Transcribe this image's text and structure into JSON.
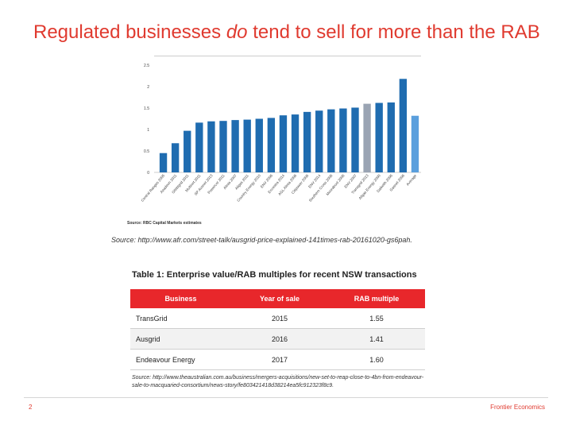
{
  "slide": {
    "title_pre": "Regulated businesses ",
    "title_em": "do",
    "title_post": " tend to sell for more than the RAB",
    "chart_source_note": "Source: RBC Capital Markets estimates",
    "source_line": "Source: http://www.afr.com/street-talk/ausgrid-price-explained-141times-rab-20161020-gs6pah.",
    "page_number": "2",
    "company": "Frontier Economics"
  },
  "chart_data": {
    "type": "bar",
    "title": "",
    "xlabel": "",
    "ylabel": "",
    "ylim": [
      0,
      2.5
    ],
    "yticks": [
      "0",
      "0.5",
      "1",
      "1.5",
      "2",
      "2.5"
    ],
    "categories": [
      "Central Ranges 2005",
      "Aeadeon 2011",
      "ONWgrid 2011",
      "Multinet 2011",
      "SP Ausnet 2013",
      "Powercor 2011",
      "Alinta 2007",
      "Allgas 2011",
      "Country Energy 2010",
      "ENV 2006",
      "Envestra 2014",
      "AGL Alinta 2006",
      "Citipower 2006",
      "ENV 2014",
      "Southern Cross 2006",
      "Moorabool 2006",
      "ENV 2007",
      "Transgrid 2013",
      "Allgas Energy 2008",
      "Dalkeith 2006",
      "Gasnet 2006",
      "Average"
    ],
    "values": [
      0.45,
      0.68,
      0.97,
      1.16,
      1.19,
      1.2,
      1.22,
      1.23,
      1.25,
      1.27,
      1.33,
      1.35,
      1.41,
      1.44,
      1.47,
      1.49,
      1.51,
      1.6,
      1.62,
      1.63,
      2.18,
      1.32
    ],
    "colors": [
      "#1f6cb0",
      "#1f6cb0",
      "#1f6cb0",
      "#1f6cb0",
      "#1f6cb0",
      "#1f6cb0",
      "#1f6cb0",
      "#1f6cb0",
      "#1f6cb0",
      "#1f6cb0",
      "#1f6cb0",
      "#1f6cb0",
      "#1f6cb0",
      "#1f6cb0",
      "#1f6cb0",
      "#1f6cb0",
      "#1f6cb0",
      "#9aa4b3",
      "#1f6cb0",
      "#1f6cb0",
      "#1f6cb0",
      "#5a9fdd"
    ]
  },
  "table": {
    "caption": "Table 1: Enterprise value/RAB multiples for recent NSW transactions",
    "headers": [
      "Business",
      "Year of sale",
      "RAB multiple"
    ],
    "rows": [
      [
        "TransGrid",
        "2015",
        "1.55"
      ],
      [
        "Ausgrid",
        "2016",
        "1.41"
      ],
      [
        "Endeavour Energy",
        "2017",
        "1.60"
      ]
    ],
    "source": "Source: http://www.theaustralian.com.au/business/mergers-acquisitions/new-set-to-reap-close-to-4bn-from-endeavour-sale-to-macquaried-consortium/news-story/fe803421418d38214ea5fc912323f8c9."
  }
}
